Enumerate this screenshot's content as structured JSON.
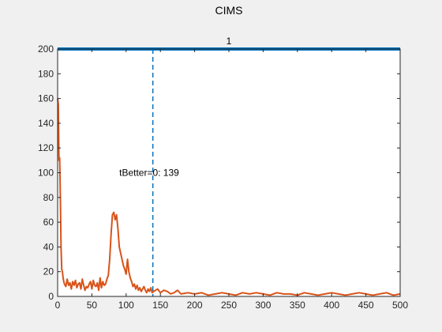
{
  "chart_data": {
    "type": "line",
    "title": "CIMS",
    "xlabel": "",
    "ylabel": "",
    "xlim": [
      0,
      500
    ],
    "ylim": [
      0,
      200
    ],
    "xticks": [
      0,
      50,
      100,
      150,
      200,
      250,
      300,
      350,
      400,
      450,
      500
    ],
    "yticks": [
      0,
      20,
      40,
      60,
      80,
      100,
      120,
      140,
      160,
      180,
      200
    ],
    "grid": false,
    "legend": "none",
    "colors": {
      "threshold": "#0072BD",
      "signal": "#D95319",
      "marker": "#0072BD"
    },
    "threshold_line": {
      "y": 200,
      "label": "1"
    },
    "vertical_marker": {
      "x": 139,
      "style": "dashed"
    },
    "annotation": {
      "text": "tBetter=0: 139",
      "x": 90,
      "y": 100
    },
    "series": [
      {
        "x": [
          0,
          1,
          2,
          3,
          4,
          5,
          6,
          7,
          8,
          9,
          10,
          12,
          14,
          16,
          18,
          20,
          22,
          24,
          26,
          28,
          30,
          32,
          34,
          36,
          38,
          40,
          42,
          44,
          46,
          48,
          50,
          52,
          54,
          56,
          58,
          60,
          62,
          64,
          66,
          68,
          70,
          72,
          74,
          76,
          78,
          80,
          82,
          84,
          86,
          88,
          90,
          92,
          94,
          96,
          98,
          100,
          102,
          104,
          106,
          108,
          110,
          112,
          114,
          116,
          118,
          120,
          122,
          124,
          126,
          128,
          130,
          132,
          134,
          136,
          138,
          140,
          143,
          146,
          150,
          155,
          160,
          165,
          170,
          175,
          180,
          190,
          200,
          210,
          220,
          230,
          240,
          250,
          260,
          270,
          280,
          290,
          300,
          310,
          320,
          330,
          340,
          350,
          360,
          370,
          380,
          390,
          400,
          410,
          420,
          430,
          440,
          450,
          460,
          470,
          480,
          490,
          500
        ],
        "values": [
          160,
          155,
          110,
          112,
          80,
          40,
          22,
          20,
          15,
          12,
          10,
          8,
          14,
          9,
          11,
          6,
          12,
          9,
          13,
          7,
          10,
          11,
          6,
          14,
          9,
          5,
          8,
          7,
          10,
          12,
          6,
          13,
          9,
          8,
          11,
          5,
          15,
          7,
          12,
          9,
          10,
          14,
          17,
          30,
          50,
          66,
          68,
          62,
          66,
          55,
          40,
          35,
          30,
          25,
          22,
          18,
          30,
          20,
          15,
          12,
          8,
          10,
          6,
          9,
          5,
          7,
          4,
          6,
          8,
          5,
          3,
          6,
          4,
          7,
          3,
          4,
          5,
          6,
          3,
          5,
          4,
          2,
          3,
          5,
          2,
          3,
          2,
          3,
          1,
          2,
          3,
          2,
          1,
          3,
          2,
          3,
          2,
          1,
          3,
          2,
          2,
          1,
          3,
          2,
          1,
          2,
          3,
          2,
          1,
          2,
          3,
          2,
          1,
          2,
          3,
          1,
          2
        ]
      }
    ]
  }
}
